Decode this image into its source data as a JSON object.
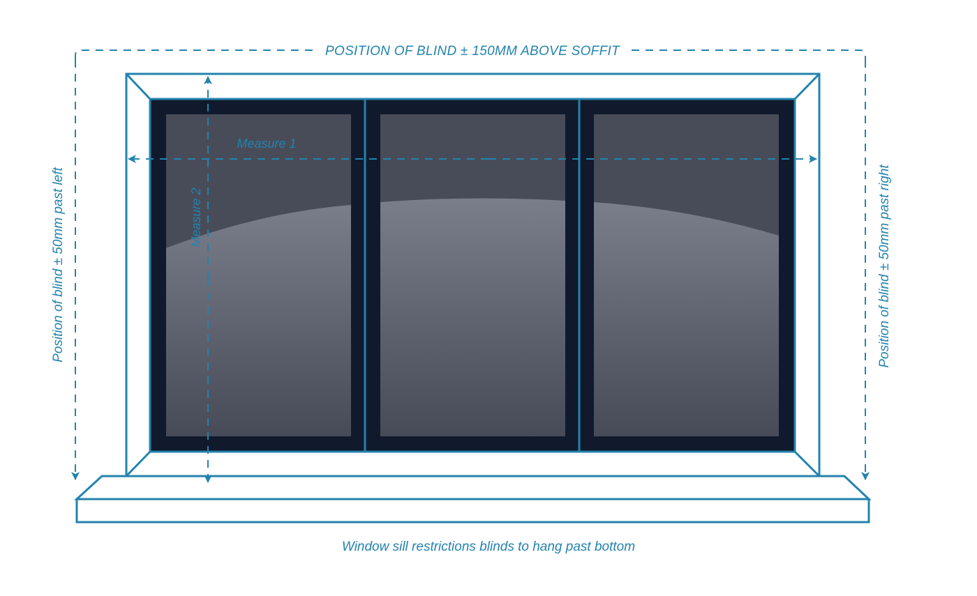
{
  "labels": {
    "top": "POSITION OF BLIND ± 150MM ABOVE SOFFIT",
    "left": "Position of blind ± 50mm past left",
    "right": "Position of blind ± 50mm past right",
    "measure1": "Measure 1",
    "measure2": "Measure 2",
    "bottom": "Window sill restrictions blinds to hang past bottom"
  },
  "colors": {
    "accent": "#2383ae",
    "frame_dark": "#101a2c",
    "glass_top": "#4a4e5a",
    "glass_highlight": "#737783",
    "background": "#ffffff"
  },
  "panes": [
    "left-pane",
    "middle-pane",
    "right-pane"
  ]
}
